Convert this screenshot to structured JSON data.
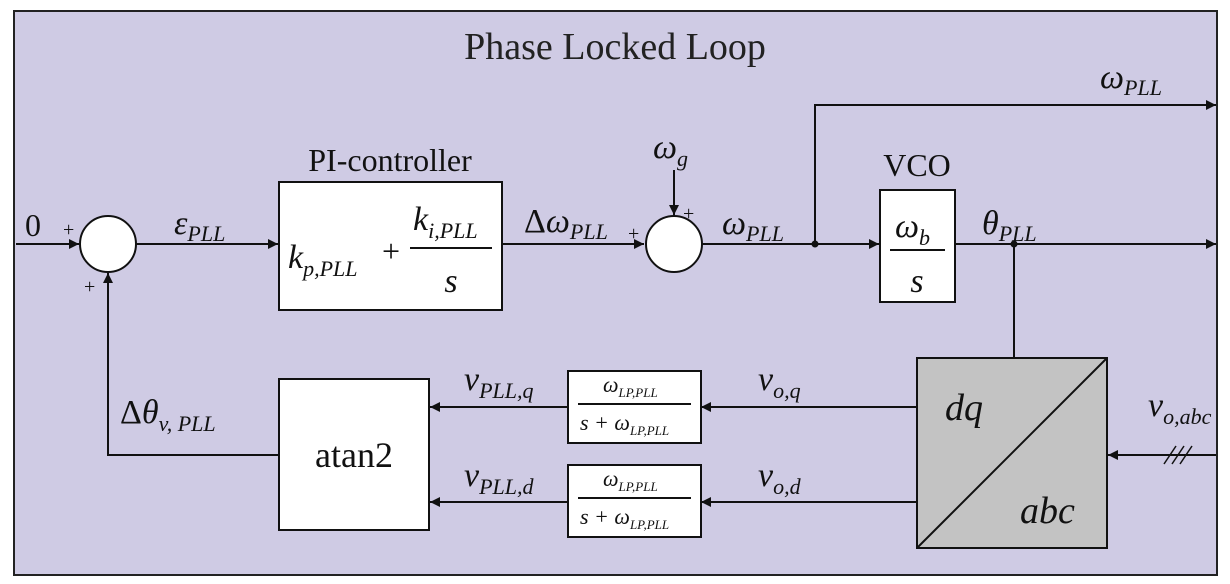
{
  "title": "Phase Locked Loop",
  "colors": {
    "background": "#cfcbe4",
    "border": "#222222",
    "block_fill": "#ffffff",
    "transform_fill": "#c3c3c3",
    "line": "#111111"
  },
  "labels": {
    "zero_input": "0",
    "plus": "+",
    "epsilon": {
      "sym": "ε",
      "sub": "PLL"
    },
    "pi_controller": "PI-controller",
    "pi_tf": {
      "kp": "k",
      "kp_sub": "p,PLL",
      "plus": "+",
      "ki": "k",
      "ki_sub": "i,PLL",
      "den": "s"
    },
    "delta_omega": {
      "delta": "Δ",
      "sym": "ω",
      "sub": "PLL"
    },
    "omega_g": {
      "sym": "ω",
      "sub": "g"
    },
    "omega_pll_mid": {
      "sym": "ω",
      "sub": "PLL"
    },
    "omega_pll_out": {
      "sym": "ω",
      "sub": "PLL"
    },
    "vco": "VCO",
    "vco_tf": {
      "num": "ω",
      "num_sub": "b",
      "den": "s"
    },
    "theta": {
      "sym": "θ",
      "sub": "PLL"
    },
    "v_pll_q": {
      "sym": "v",
      "sub": "PLL,q"
    },
    "v_pll_d": {
      "sym": "v",
      "sub": "PLL,d"
    },
    "v_oq": {
      "sym": "v",
      "sub": "o,q"
    },
    "v_od": {
      "sym": "v",
      "sub": "o,d"
    },
    "v_oabc": {
      "sym": "v",
      "sub": "o,abc"
    },
    "lpf_q": {
      "num": "ω",
      "num_sub": "LP,PLL",
      "den_s": "s + ω",
      "den_sub": "LP,PLL"
    },
    "lpf_d": {
      "num": "ω",
      "num_sub": "LP,PLL",
      "den_s": "s + ω",
      "den_sub": "LP,PLL"
    },
    "atan2": "atan2",
    "delta_theta": {
      "delta": "Δ",
      "sym": "θ",
      "sub": "v, PLL"
    },
    "dq": "dq",
    "abc": "abc"
  }
}
